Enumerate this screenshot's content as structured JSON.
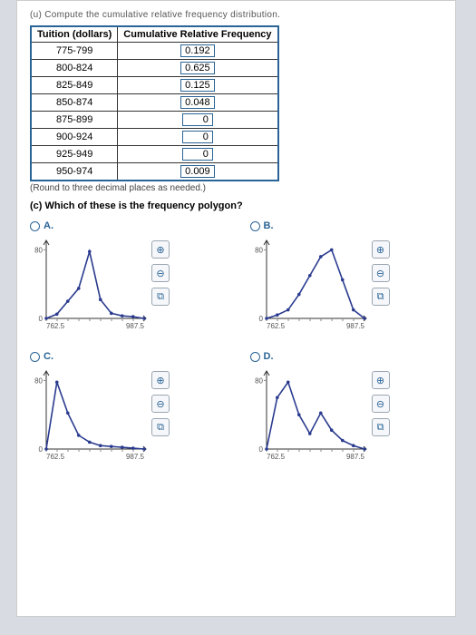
{
  "header_fragment": "(u) Compute the cumulative relative frequency distribution.",
  "table": {
    "col1": "Tuition (dollars)",
    "col2": "Cumulative Relative Frequency",
    "rows": [
      {
        "range": "775-799",
        "value": "0.192"
      },
      {
        "range": "800-824",
        "value": "0.625"
      },
      {
        "range": "825-849",
        "value": "0.125"
      },
      {
        "range": "850-874",
        "value": "0.048"
      },
      {
        "range": "875-899",
        "value": "0"
      },
      {
        "range": "900-924",
        "value": "0"
      },
      {
        "range": "925-949",
        "value": "0"
      },
      {
        "range": "950-974",
        "value": "0.009"
      }
    ]
  },
  "round_note": "(Round to three decimal places as needed.)",
  "question": "(c) Which of these is the frequency polygon?",
  "choices": {
    "A": {
      "label": "A."
    },
    "B": {
      "label": "B."
    },
    "C": {
      "label": "C."
    },
    "D": {
      "label": "D."
    }
  },
  "chart_style": {
    "line_color": "#2a3b8f",
    "line_width": 1.6,
    "axis_color": "#333333",
    "tick_color": "#888888",
    "y_max_label": "80",
    "y_origin_label": "0",
    "x_left_label": "762.5",
    "x_right_label": "987.5",
    "y_tick": 80,
    "x_range": [
      762.5,
      987.5
    ]
  },
  "polylines": {
    "A": [
      [
        762.5,
        0
      ],
      [
        787,
        5
      ],
      [
        812,
        20
      ],
      [
        837,
        35
      ],
      [
        862,
        78
      ],
      [
        887,
        22
      ],
      [
        912,
        6
      ],
      [
        937,
        3
      ],
      [
        962,
        2
      ],
      [
        987.5,
        0
      ]
    ],
    "B": [
      [
        762.5,
        0
      ],
      [
        787,
        4
      ],
      [
        812,
        10
      ],
      [
        837,
        28
      ],
      [
        862,
        50
      ],
      [
        887,
        72
      ],
      [
        912,
        80
      ],
      [
        937,
        45
      ],
      [
        962,
        10
      ],
      [
        987.5,
        0
      ]
    ],
    "C": [
      [
        762.5,
        0
      ],
      [
        787,
        78
      ],
      [
        812,
        42
      ],
      [
        837,
        16
      ],
      [
        862,
        8
      ],
      [
        887,
        4
      ],
      [
        912,
        3
      ],
      [
        937,
        2
      ],
      [
        962,
        1
      ],
      [
        987.5,
        0
      ]
    ],
    "D": [
      [
        762.5,
        0
      ],
      [
        787,
        60
      ],
      [
        812,
        78
      ],
      [
        837,
        40
      ],
      [
        862,
        18
      ],
      [
        887,
        42
      ],
      [
        912,
        22
      ],
      [
        937,
        10
      ],
      [
        962,
        4
      ],
      [
        987.5,
        0
      ]
    ]
  },
  "icons": {
    "zoom_in": "⊕",
    "zoom_out": "⊖",
    "popout": "⧉"
  }
}
